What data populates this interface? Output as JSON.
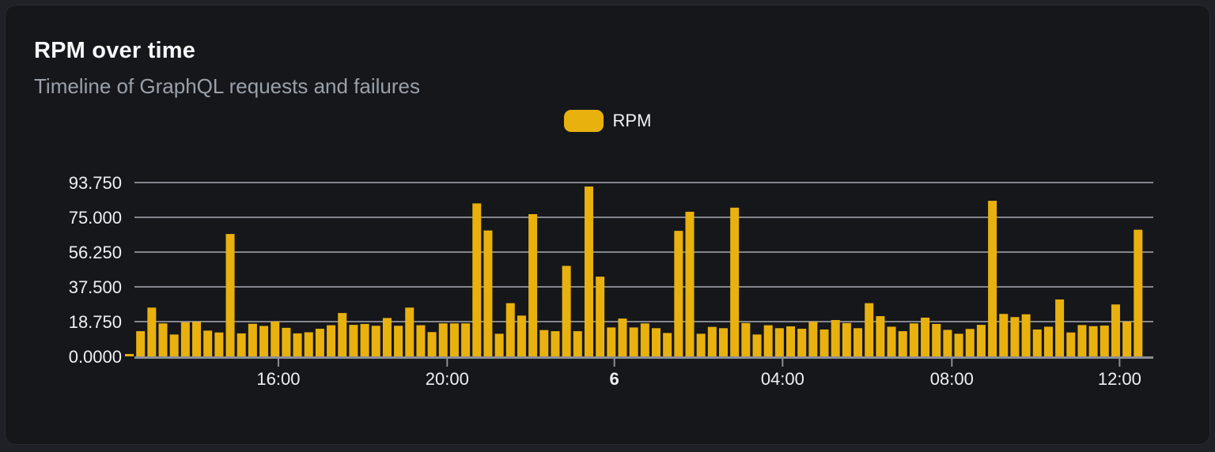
{
  "card": {
    "title": "RPM over time",
    "subtitle": "Timeline of GraphQL requests and failures"
  },
  "legend": {
    "label": "RPM"
  },
  "colors": {
    "page_bg": "#1f2127",
    "card_bg": "#15171b",
    "card_border": "#26292f",
    "title_text": "#f7f8f8",
    "subtitle_text": "#9aa1a9",
    "accent_yellow": "#e9b10e",
    "grid_line": "#c6cad1",
    "axis_line": "#8a8e96",
    "axis_text": "#eef0f2"
  },
  "chart_data": {
    "type": "bar",
    "title": "RPM over time",
    "subtitle": "Timeline of GraphQL requests and failures",
    "series_name": "RPM",
    "xlabel": "",
    "ylabel": "",
    "ylim": [
      0,
      93.75
    ],
    "grid": true,
    "legend_position": "top-center",
    "bar_color": "#e9b10e",
    "grid_color": "#c6cad1",
    "axis_color": "#8a8e96",
    "text_color": "#eef0f2",
    "y_ticks": [
      {
        "label": "0.0000",
        "value": 0
      },
      {
        "label": "18.750",
        "value": 18.75
      },
      {
        "label": "37.500",
        "value": 37.5
      },
      {
        "label": "56.250",
        "value": 56.25
      },
      {
        "label": "75.000",
        "value": 75
      },
      {
        "label": "93.750",
        "value": 93.75
      }
    ],
    "x_ticks": [
      {
        "label": "16:00",
        "pos": 0.1492,
        "bold": false
      },
      {
        "label": "20:00",
        "pos": 0.3133,
        "bold": false
      },
      {
        "label": "6",
        "pos": 0.4759,
        "bold": true
      },
      {
        "label": "04:00",
        "pos": 0.6395,
        "bold": false
      },
      {
        "label": "08:00",
        "pos": 0.8041,
        "bold": false
      },
      {
        "label": "12:00",
        "pos": 0.9672,
        "bold": false
      }
    ],
    "values": [
      1.3,
      13.6,
      26.3,
      17.8,
      11.8,
      18.4,
      18.6,
      13.9,
      12.9,
      66.0,
      12.4,
      17.6,
      16.4,
      18.8,
      15.4,
      12.4,
      13.0,
      14.9,
      16.8,
      23.4,
      17.0,
      17.5,
      16.5,
      20.7,
      16.5,
      26.3,
      16.8,
      13.1,
      17.8,
      17.8,
      17.8,
      82.5,
      67.9,
      12.2,
      28.7,
      22.0,
      76.7,
      14.2,
      13.6,
      48.8,
      13.6,
      91.6,
      43.0,
      15.6,
      20.4,
      15.6,
      17.8,
      15.2,
      12.6,
      67.7,
      78.0,
      12.2,
      15.9,
      15.2,
      80.2,
      18.0,
      11.8,
      16.8,
      15.2,
      16.2,
      14.9,
      18.7,
      14.5,
      19.6,
      18.0,
      15.2,
      28.7,
      21.7,
      16.0,
      13.6,
      17.8,
      20.9,
      17.5,
      14.3,
      12.2,
      14.8,
      17.0,
      83.9,
      22.9,
      21.2,
      22.7,
      14.5,
      16.0,
      30.7,
      12.9,
      16.9,
      16.3,
      16.6,
      28.0,
      18.7,
      68.3
    ]
  }
}
